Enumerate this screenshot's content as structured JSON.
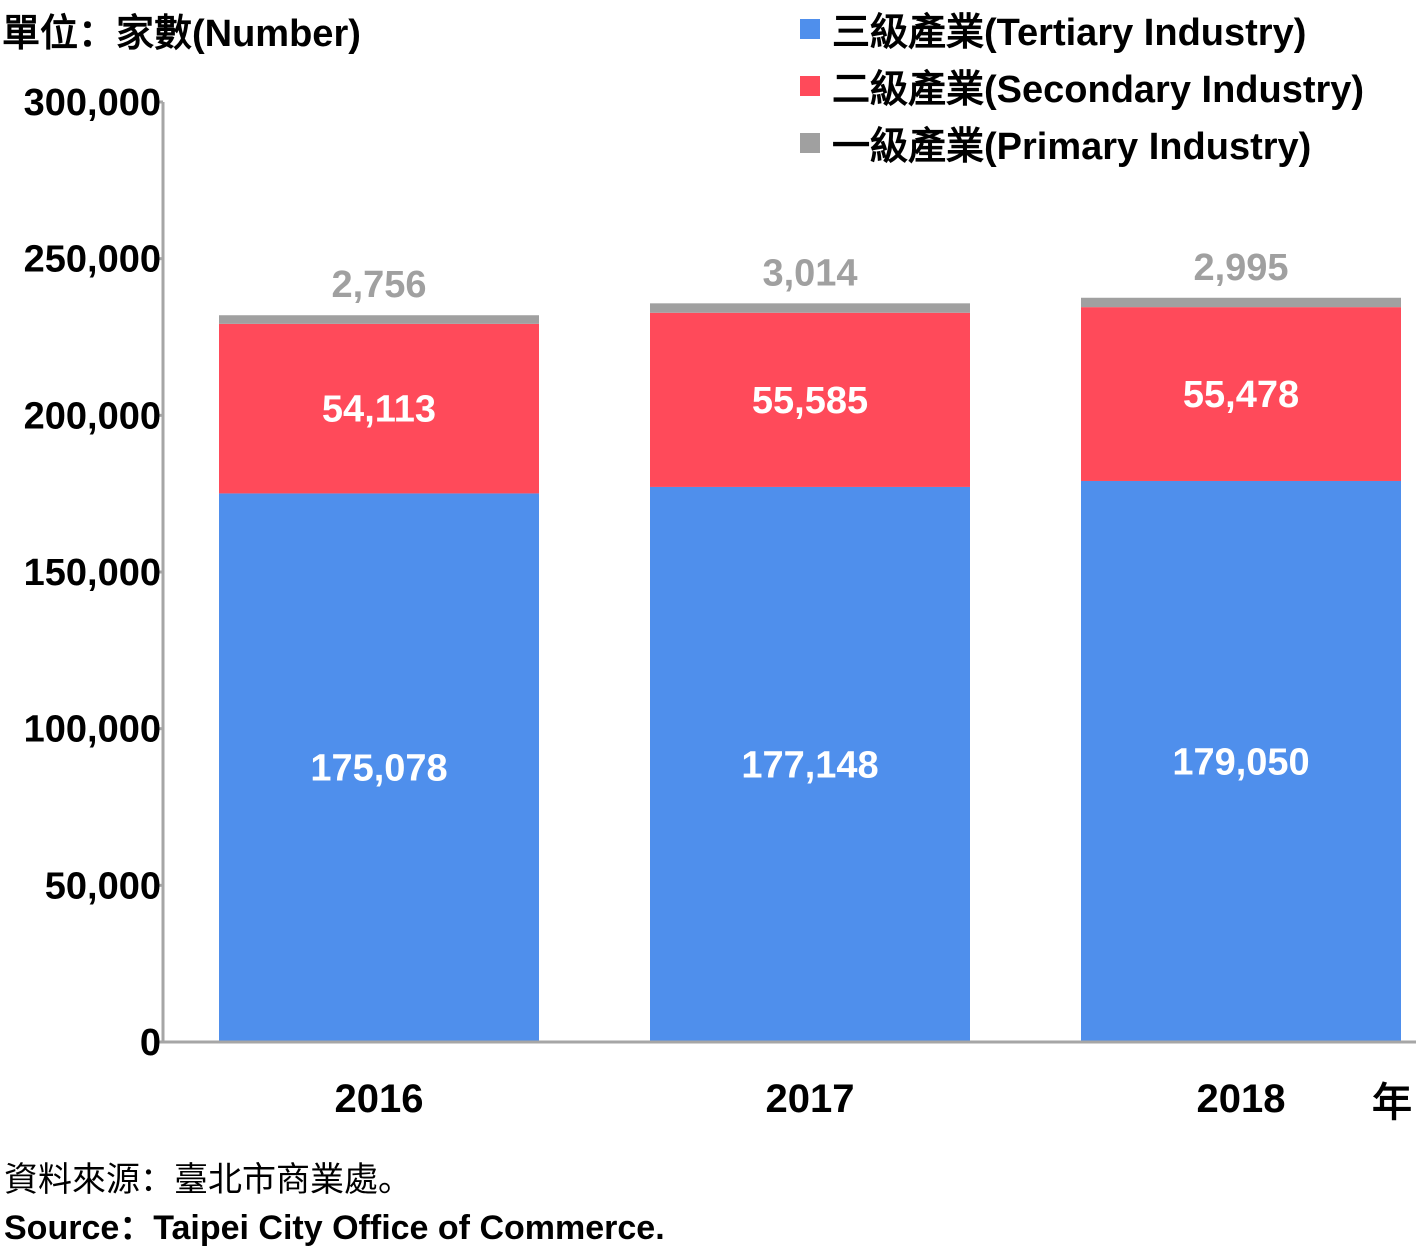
{
  "unit_label": "單位：家數(Number)",
  "x_unit": "年",
  "source_zh": "資料來源：臺北市商業處。",
  "source_en": "Source：Taipei City Office of Commerce.",
  "legend": [
    {
      "label": "三級產業(Tertiary Industry)",
      "color": "#4f8fec"
    },
    {
      "label": "二級產業(Secondary Industry)",
      "color": "#ff4a5a"
    },
    {
      "label": "一級產業(Primary Industry)",
      "color": "#a0a0a0"
    }
  ],
  "chart_data": {
    "type": "bar",
    "stacked": true,
    "categories": [
      "2016",
      "2017",
      "2018"
    ],
    "series": [
      {
        "name": "三級產業(Tertiary Industry)",
        "color": "#4f8fec",
        "values": [
          175078,
          177148,
          179050
        ],
        "labels": [
          "175,078",
          "177,148",
          "179,050"
        ]
      },
      {
        "name": "二級產業(Secondary Industry)",
        "color": "#ff4a5a",
        "values": [
          54113,
          55585,
          55478
        ],
        "labels": [
          "54,113",
          "55,585",
          "55,478"
        ]
      },
      {
        "name": "一級產業(Primary Industry)",
        "color": "#a0a0a0",
        "values": [
          2756,
          3014,
          2995
        ],
        "labels": [
          "2,756",
          "3,014",
          "2,995"
        ]
      }
    ],
    "yticks": [
      "0",
      "50,000",
      "100,000",
      "150,000",
      "200,000",
      "250,000",
      "300,000"
    ],
    "ylim": [
      0,
      300000
    ],
    "grid": false,
    "legend_position": "top-right"
  }
}
